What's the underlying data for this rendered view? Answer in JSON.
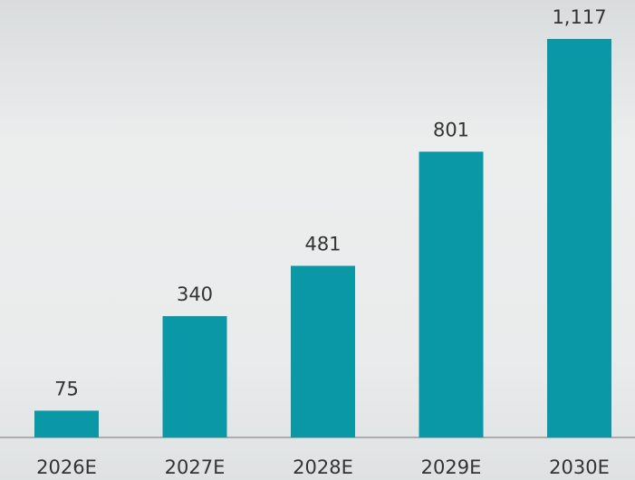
{
  "chart_data": {
    "type": "bar",
    "categories": [
      "2026E",
      "2027E",
      "2028E",
      "2029E",
      "2030E"
    ],
    "values": [
      75,
      340,
      481,
      801,
      1117
    ],
    "value_labels": [
      "75",
      "340",
      "481",
      "801",
      "1,117"
    ],
    "color": "#0a97a6"
  }
}
